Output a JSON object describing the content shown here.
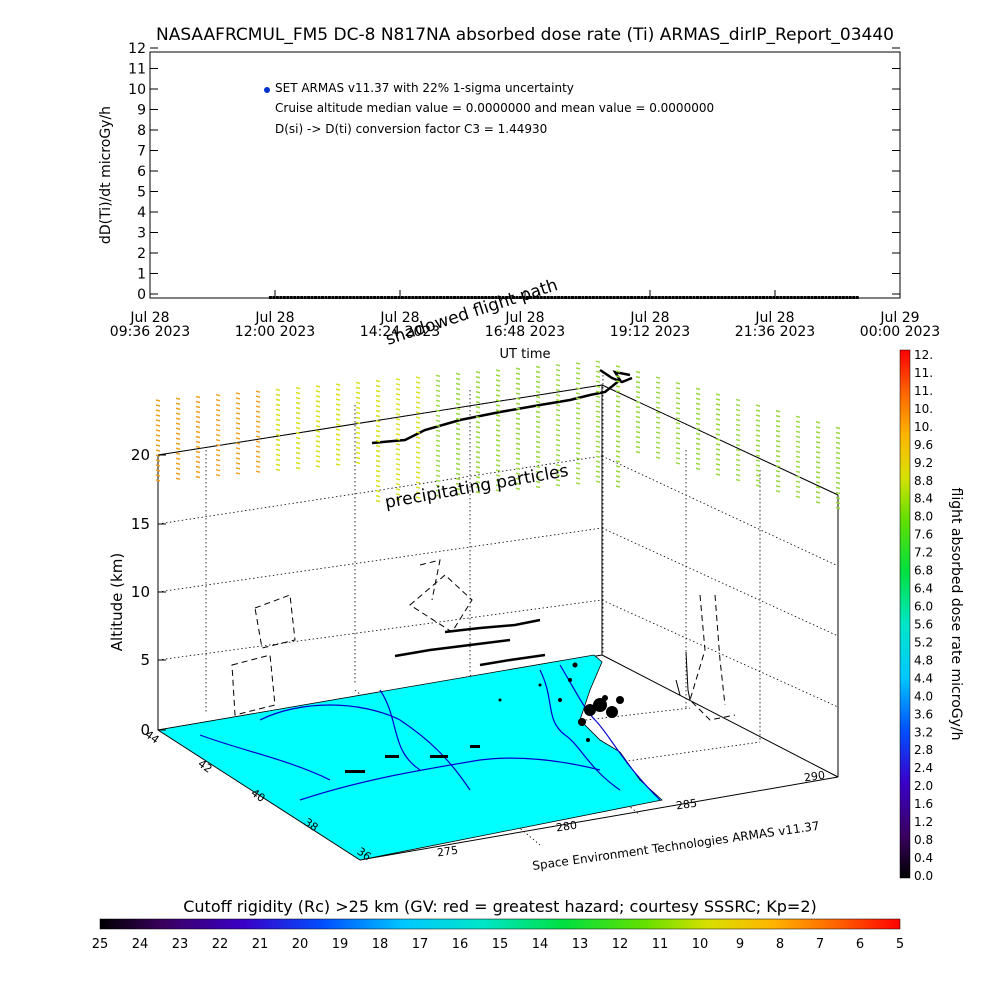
{
  "chart_data": [
    {
      "type": "scatter",
      "title": "NASAAFRCMUL_FM5 DC-8   N817NA absorbed dose rate (Ti) ARMAS_dirIP_Report_03440",
      "xlabel": "UT time",
      "ylabel": "dD(Ti)/dt microGy/h",
      "ylim": [
        0,
        12
      ],
      "yticks": [
        "0",
        "1",
        "2",
        "3",
        "4",
        "5",
        "6",
        "7",
        "8",
        "9",
        "10",
        "11",
        "12"
      ],
      "xticks": [
        {
          "l1": "Jul 28",
          "l2": "09:36 2023"
        },
        {
          "l1": "Jul 28",
          "l2": "12:00 2023"
        },
        {
          "l1": "Jul 28",
          "l2": "14:24 2023"
        },
        {
          "l1": "Jul 28",
          "l2": "16:48 2023"
        },
        {
          "l1": "Jul 28",
          "l2": "19:12 2023"
        },
        {
          "l1": "Jul 28",
          "l2": "21:36 2023"
        },
        {
          "l1": "Jul 29",
          "l2": "00:00 2023"
        }
      ],
      "xlim": [
        "2023-07-28 09:36",
        "2023-07-29 00:00"
      ],
      "series": [
        {
          "name": "SET ARMAS v11.37 with 22% 1-sigma uncertainty",
          "color": "#0033cc",
          "x_start": "2023-07-28 11:53",
          "x_end": "2023-07-28 23:12",
          "value": 0
        }
      ],
      "annotations": [
        "SET ARMAS v11.37 with 22% 1-sigma uncertainty",
        "Cruise altitude median value = 0.0000000 and mean value = 0.0000000",
        "D(si) -> D(ti) conversion factor C3 = 1.44930"
      ],
      "grid": false
    },
    {
      "type": "scatter",
      "subtype": "3d-flight-track",
      "zlabel": "Altitude (km)",
      "zticks": [
        "0",
        "5",
        "10",
        "15",
        "20"
      ],
      "lat_ticks": [
        "44",
        "42",
        "40",
        "38",
        "36"
      ],
      "lon_ticks": [
        "275",
        "280",
        "285",
        "290"
      ],
      "labels": [
        "shadowed flight path",
        "precipitating particles"
      ],
      "credit": "Space Environment Technologies ARMAS v11.37",
      "colorbar_right": {
        "label": "flight absorbed dose rate microGy/h",
        "ticks": [
          "12.",
          "11.",
          "11.",
          "10.",
          "10.",
          "9.6",
          "9.2",
          "8.8",
          "8.4",
          "8.0",
          "7.6",
          "7.2",
          "6.8",
          "6.4",
          "6.0",
          "5.6",
          "5.2",
          "4.8",
          "4.4",
          "4.0",
          "3.6",
          "3.2",
          "2.8",
          "2.4",
          "2.0",
          "1.6",
          "1.2",
          "0.8",
          "0.4",
          "0.0"
        ]
      },
      "colorbar_bottom": {
        "label": "Cutoff rigidity (Rc) >25 km (GV: red = greatest hazard; courtesy SSSRC; Kp=2)",
        "ticks": [
          "25",
          "24",
          "23",
          "22",
          "21",
          "20",
          "19",
          "18",
          "17",
          "16",
          "15",
          "14",
          "13",
          "12",
          "11",
          "10",
          "9",
          "8",
          "7",
          "6",
          "5"
        ]
      },
      "colors": {
        "ocean": "#00ffff",
        "coast": "#0000ff",
        "track": "#000000"
      }
    }
  ]
}
